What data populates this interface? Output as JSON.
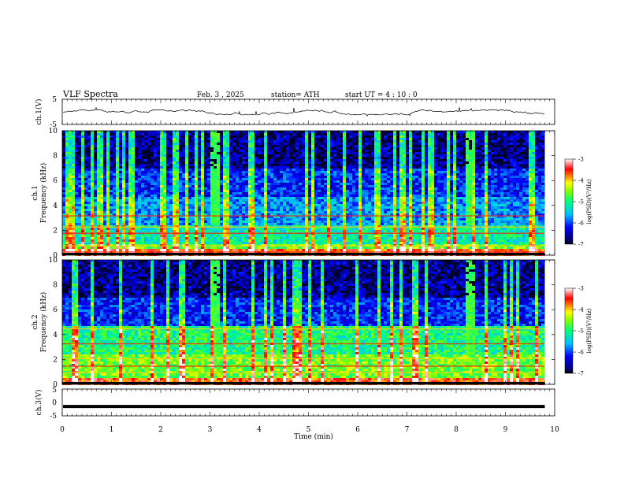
{
  "header": {
    "title": "VLF  Spectra",
    "date": "Feb. 3  , 2025",
    "station": "station= ATH",
    "start_ut": "start  UT  =   4  : 10 : 0"
  },
  "chart_data": [
    {
      "type": "line",
      "name": "ch1-waveform",
      "ylabel": "ch.1(V)",
      "ylim": [
        -5,
        5
      ],
      "y_ticks": [
        "5",
        "-5"
      ],
      "xlim": [
        0,
        10
      ],
      "x_end": 9.8,
      "approx_level": -0.2
    },
    {
      "type": "heatmap",
      "name": "ch1-spectrogram",
      "ylabel": "ch.1\nFrequency  (kHz)",
      "ylim": [
        0,
        10
      ],
      "y_ticks": [
        "0",
        "2",
        "4",
        "6",
        "8",
        "10"
      ],
      "xlim": [
        0,
        10
      ],
      "x_end": 9.8,
      "colorbar": {
        "label": "log(PSD)(V²/Hz)",
        "ticks": [
          "-3",
          "-4",
          "-5",
          "-6",
          "-7"
        ],
        "range": [
          -7,
          -3
        ]
      }
    },
    {
      "type": "heatmap",
      "name": "ch2-spectrogram",
      "ylabel": "ch.2\nFrequency  (kHz)",
      "ylim": [
        0,
        10
      ],
      "y_ticks": [
        "0",
        "2",
        "4",
        "6",
        "8",
        "10"
      ],
      "xlim": [
        0,
        10
      ],
      "x_end": 9.8,
      "colorbar": {
        "label": "log(PSD)(V²/Hz)",
        "ticks": [
          "-3",
          "-4",
          "-5",
          "-6",
          "-7"
        ],
        "range": [
          -7,
          -3
        ]
      }
    },
    {
      "type": "line",
      "name": "ch3-waveform",
      "ylabel": "ch.3(V)",
      "ylim": [
        -5,
        5
      ],
      "y_ticks": [
        "5",
        "0",
        "-5"
      ],
      "xlim": [
        0,
        10
      ],
      "x_end": 9.8,
      "approx_level": -1.5,
      "xlabel": "Time  (min)",
      "x_ticks": [
        "0",
        "1",
        "2",
        "3",
        "4",
        "5",
        "6",
        "7",
        "8",
        "9",
        "10"
      ]
    }
  ],
  "colors": {
    "spectro_low": "#00007f",
    "spectro_mid": "#00ff7f",
    "spectro_high": "#ff0000",
    "sat": "#ffffff"
  }
}
